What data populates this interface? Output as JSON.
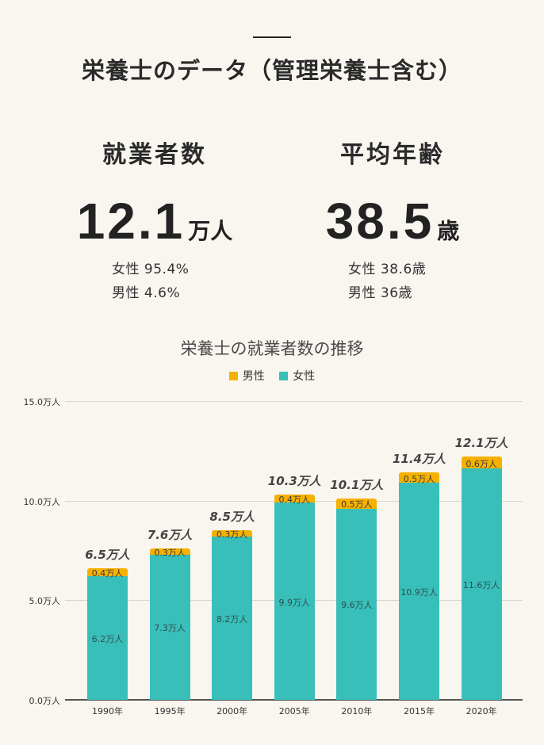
{
  "header": {
    "title": "栄養士のデータ（管理栄養士含む）"
  },
  "stats": {
    "employment": {
      "label": "就業者数",
      "value": "12.1",
      "unit": "万人",
      "female": "女性 95.4%",
      "male": "男性 4.6%"
    },
    "age": {
      "label": "平均年齢",
      "value": "38.5",
      "unit": "歳",
      "female": "女性 38.6歳",
      "male": "男性 36歳"
    }
  },
  "colors": {
    "male": "#f6b100",
    "female": "#38bfba",
    "background": "#f9f6f0"
  },
  "chart_data": {
    "type": "bar",
    "stacked": true,
    "title": "栄養士の就業者数の推移",
    "legend": [
      "男性",
      "女性"
    ],
    "legend_position": "top",
    "categories": [
      "1990年",
      "1995年",
      "2000年",
      "2005年",
      "2010年",
      "2015年",
      "2020年"
    ],
    "series": [
      {
        "name": "女性",
        "values": [
          6.2,
          7.3,
          8.2,
          9.9,
          9.6,
          10.9,
          11.6
        ],
        "labels": [
          "6.2万人",
          "7.3万人",
          "8.2万人",
          "9.9万人",
          "9.6万人",
          "10.9万人",
          "11.6万人"
        ]
      },
      {
        "name": "男性",
        "values": [
          0.4,
          0.3,
          0.3,
          0.4,
          0.5,
          0.5,
          0.6
        ],
        "labels": [
          "0.4万人",
          "0.3万人",
          "0.3万人",
          "0.4万人",
          "0.5万人",
          "0.5万人",
          "0.6万人"
        ]
      }
    ],
    "totals": [
      6.5,
      7.6,
      8.5,
      10.3,
      10.1,
      11.4,
      12.1
    ],
    "total_labels": [
      "6.5万人",
      "7.6万人",
      "8.5万人",
      "10.3万人",
      "10.1万人",
      "11.4万人",
      "12.1万人"
    ],
    "yticks": [
      "0.0万人",
      "5.0万人",
      "10.0万人",
      "15.0万人"
    ],
    "ylim": [
      0,
      15
    ],
    "grid": true,
    "xlabel": "",
    "ylabel": ""
  }
}
